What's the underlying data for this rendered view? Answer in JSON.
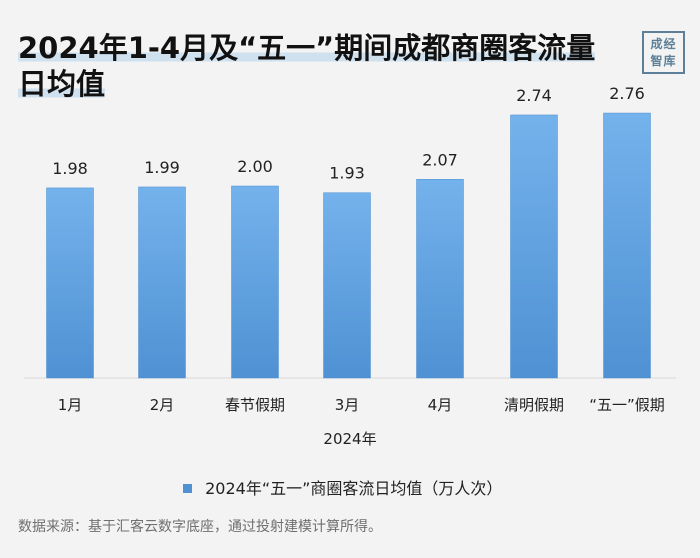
{
  "header": {
    "title_line1": "2024年1-4月及“五一”期间成都商圈客流量",
    "title_line2": "日均值",
    "brand_line1": "成经",
    "brand_line2": "智库"
  },
  "chart_data": {
    "type": "bar",
    "title": "2024年1-4月及“五一”期间成都商圈客流量日均值",
    "categories": [
      "1月",
      "2月",
      "春节假期",
      "3月",
      "4月",
      "清明假期",
      "“五一”假期"
    ],
    "series": [
      {
        "name": "2024年“五一”商圈客流日均值（万人次）",
        "values": [
          1.98,
          1.99,
          2.0,
          1.93,
          2.07,
          2.74,
          2.76
        ]
      }
    ],
    "data_labels": [
      "1.98",
      "1.99",
      "2.00",
      "1.93",
      "2.07",
      "2.74",
      "2.76"
    ],
    "xlabel": "2024年",
    "ylabel": "",
    "ylim": [
      0,
      3.0
    ],
    "legend_position": "bottom",
    "grid": false,
    "bar_color": "#4f91d3"
  },
  "legend": {
    "label": "2024年“五一”商圈客流日均值（万人次）"
  },
  "source": {
    "text": "数据来源：基于汇客云数字底座，通过投射建模计算所得。"
  }
}
